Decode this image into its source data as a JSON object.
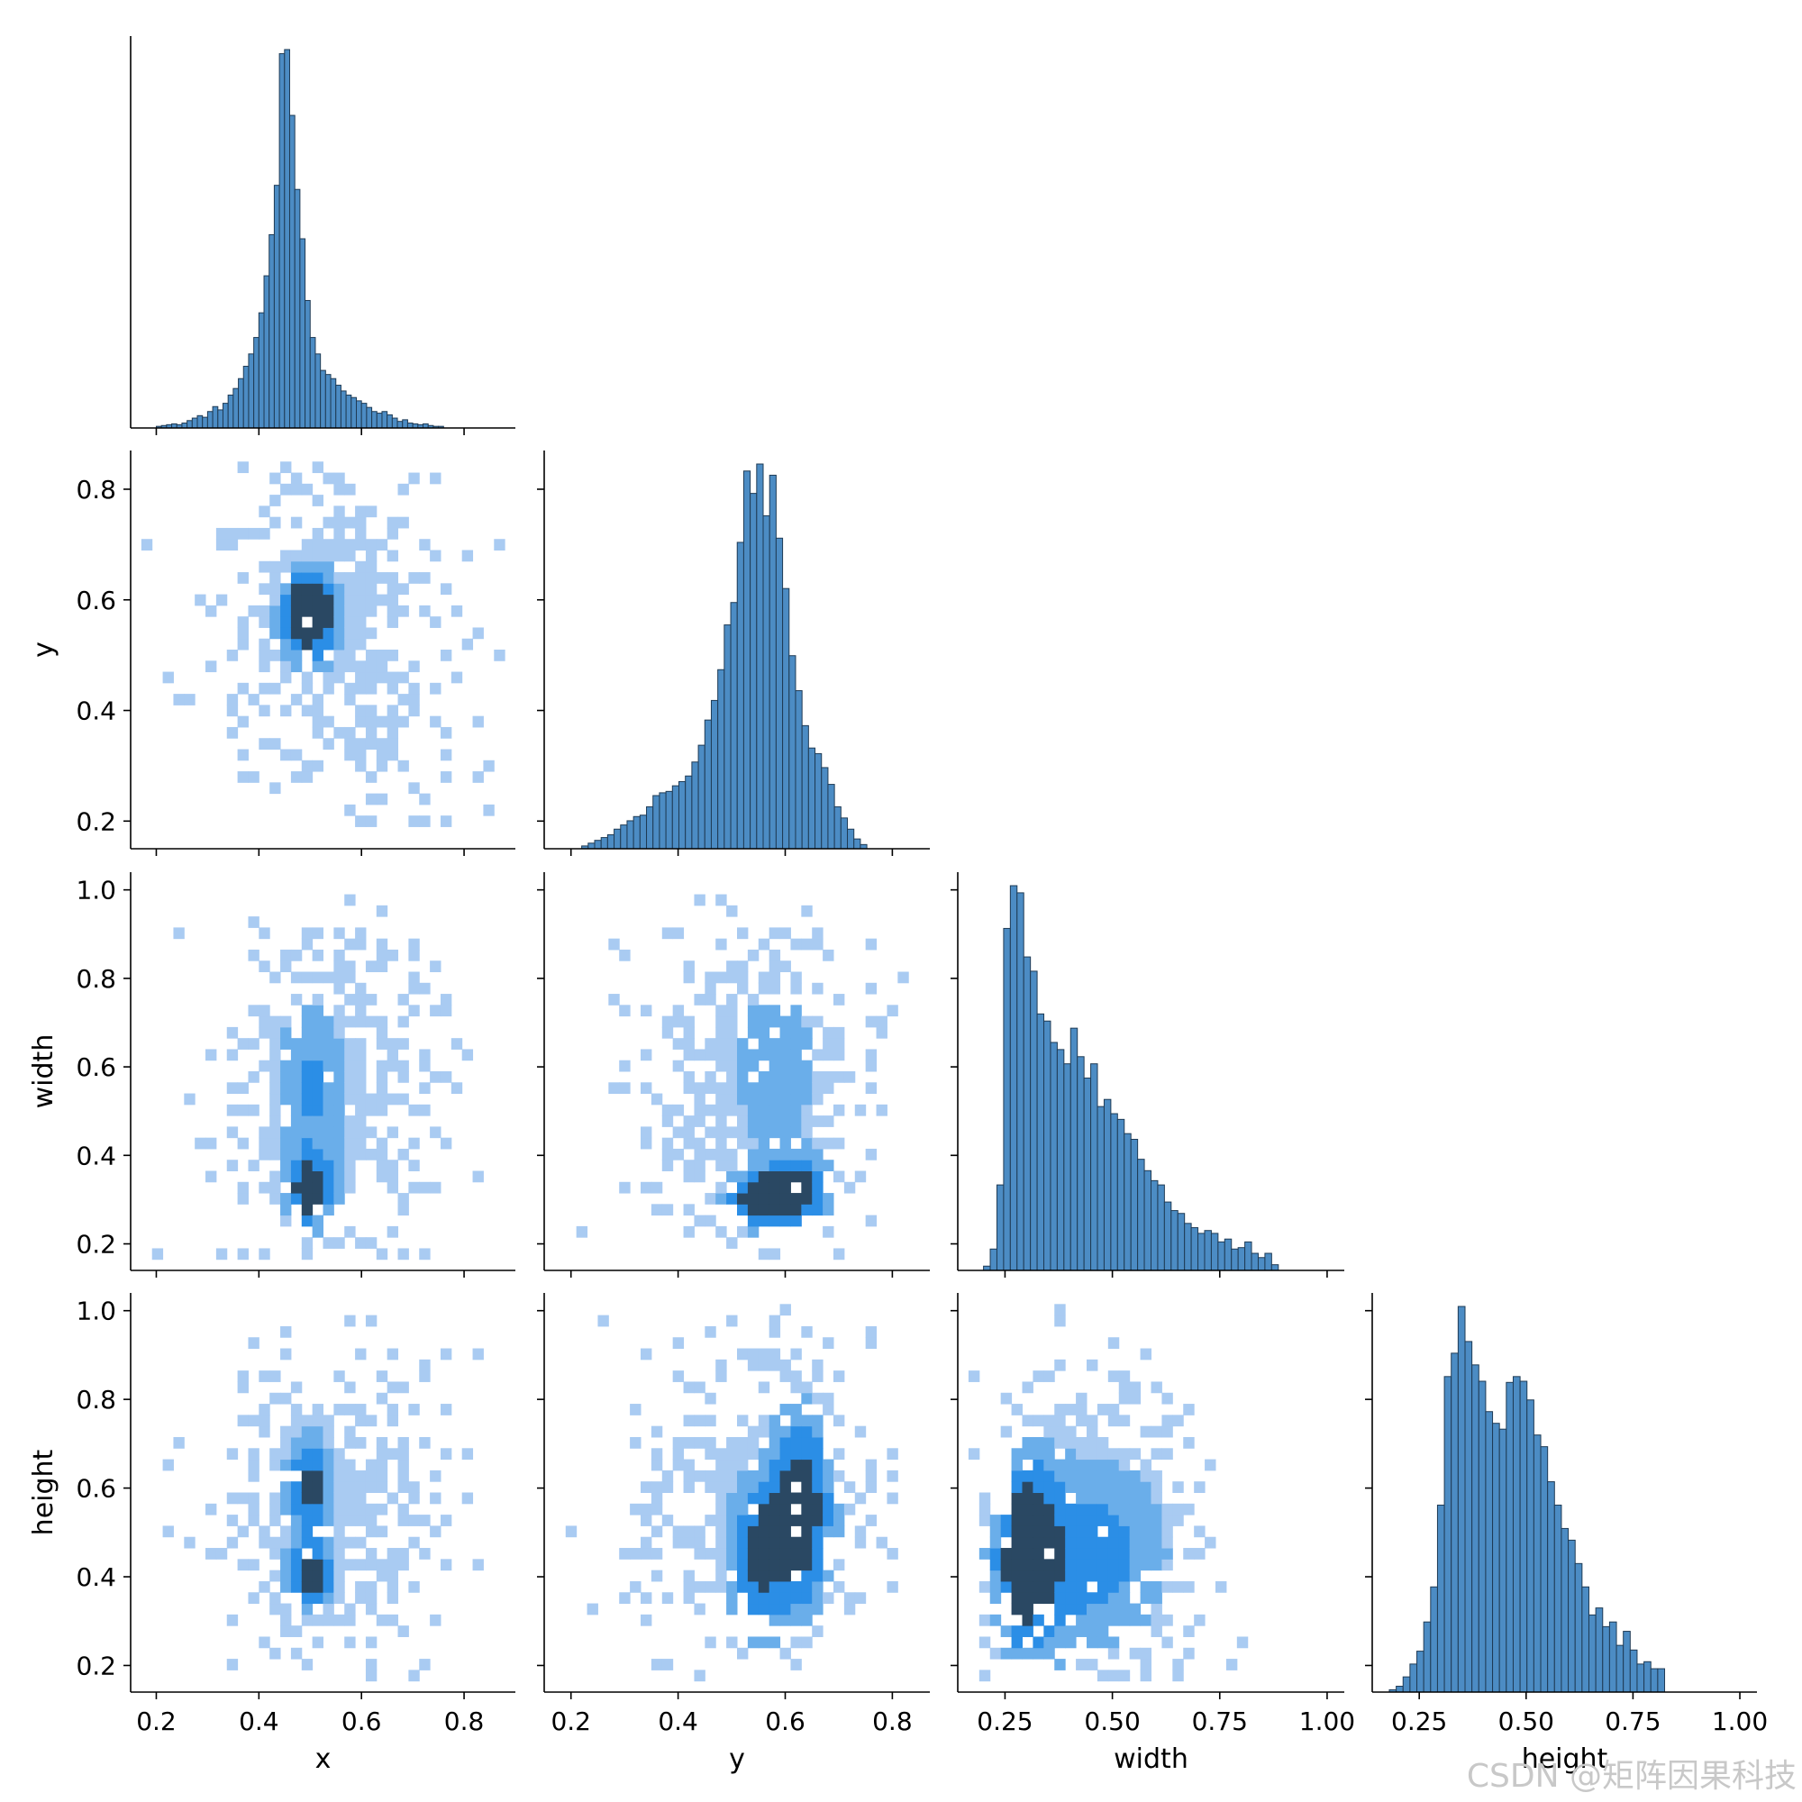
{
  "chart_data": {
    "type": "pairplot",
    "variables": [
      "x",
      "y",
      "width",
      "height"
    ],
    "diag_kind": "histogram",
    "offdiag_kind": "2d-histogram",
    "corner": true,
    "colors": {
      "bar": "#4c8cc4",
      "edge": "#1f3b55",
      "heat_low": "#a9cbf2",
      "heat_mid": "#2b8ee6",
      "heat_high": "#2a4863"
    },
    "axes": {
      "x": {
        "label": "x",
        "ticks": [
          "0.2",
          "0.4",
          "0.6",
          "0.8"
        ],
        "range": [
          0.15,
          0.9
        ]
      },
      "y": {
        "label": "y",
        "ticks": [
          "0.2",
          "0.4",
          "0.6",
          "0.8"
        ],
        "range": [
          0.15,
          0.87
        ]
      },
      "width": {
        "label": "width",
        "ticks": [
          "0.25",
          "0.50",
          "0.75",
          "1.00"
        ],
        "range": [
          0.14,
          1.04
        ],
        "yticks": [
          "0.2",
          "0.4",
          "0.6",
          "0.8",
          "1.0"
        ]
      },
      "height": {
        "label": "height",
        "ticks": [
          "0.25",
          "0.50",
          "0.75",
          "1.00"
        ],
        "range": [
          0.14,
          1.04
        ],
        "yticks": [
          "0.2",
          "0.4",
          "0.6",
          "0.8",
          "1.0"
        ]
      }
    },
    "diagonal": [
      {
        "variable": "x",
        "bin_start": 0.2,
        "bin_width": 0.01,
        "counts": [
          2,
          3,
          4,
          5,
          4,
          6,
          9,
          12,
          15,
          13,
          20,
          26,
          22,
          30,
          40,
          48,
          60,
          75,
          90,
          110,
          140,
          185,
          235,
          295,
          455,
          460,
          380,
          290,
          230,
          155,
          110,
          90,
          70,
          65,
          60,
          52,
          45,
          40,
          37,
          33,
          30,
          25,
          20,
          18,
          20,
          16,
          12,
          8,
          10,
          6,
          5,
          4,
          5,
          3,
          2,
          2
        ]
      },
      {
        "variable": "y",
        "bin_start": 0.22,
        "bin_width": 0.0121,
        "counts": [
          2,
          4,
          6,
          8,
          10,
          14,
          17,
          20,
          23,
          24,
          30,
          38,
          40,
          41,
          45,
          48,
          52,
          62,
          74,
          92,
          106,
          128,
          160,
          176,
          219,
          270,
          254,
          275,
          238,
          267,
          222,
          186,
          138,
          113,
          88,
          72,
          68,
          58,
          46,
          30,
          22,
          14,
          7,
          3
        ]
      },
      {
        "variable": "width",
        "bin_start": 0.2,
        "bin_width": 0.0156,
        "counts": [
          3,
          15,
          60,
          240,
          270,
          265,
          220,
          210,
          180,
          175,
          160,
          155,
          145,
          170,
          150,
          135,
          145,
          115,
          120,
          110,
          106,
          96,
          92,
          78,
          70,
          63,
          60,
          48,
          42,
          40,
          33,
          30,
          26,
          28,
          26,
          20,
          22,
          15,
          16,
          20,
          12,
          9,
          12,
          4
        ]
      },
      {
        "variable": "height",
        "bin_start": 0.18,
        "bin_width": 0.0161,
        "counts": [
          2,
          5,
          13,
          24,
          35,
          60,
          90,
          160,
          270,
          290,
          330,
          300,
          280,
          266,
          240,
          230,
          225,
          265,
          270,
          266,
          250,
          220,
          210,
          180,
          160,
          140,
          130,
          110,
          90,
          66,
          72,
          56,
          60,
          40,
          52,
          36,
          24,
          26,
          20,
          20
        ]
      }
    ],
    "density_2d": [
      {
        "x": "x",
        "y": "y",
        "regions": [
          {
            "cx": 0.5,
            "cy": 0.6,
            "sx": 0.03,
            "sy": 0.04,
            "weight": 1.0
          },
          {
            "cx": 0.5,
            "cy": 0.55,
            "sx": 0.04,
            "sy": 0.05,
            "weight": 0.8
          }
        ]
      },
      {
        "x": "x",
        "y": "width",
        "regions": [
          {
            "cx": 0.5,
            "cy": 0.32,
            "sx": 0.03,
            "sy": 0.05,
            "weight": 1.0
          },
          {
            "cx": 0.5,
            "cy": 0.55,
            "sx": 0.05,
            "sy": 0.15,
            "weight": 0.5
          }
        ]
      },
      {
        "x": "y",
        "y": "width",
        "regions": [
          {
            "cx": 0.55,
            "cy": 0.3,
            "sx": 0.04,
            "sy": 0.04,
            "weight": 1.0
          },
          {
            "cx": 0.62,
            "cy": 0.32,
            "sx": 0.04,
            "sy": 0.05,
            "weight": 1.0
          },
          {
            "cx": 0.58,
            "cy": 0.6,
            "sx": 0.06,
            "sy": 0.15,
            "weight": 0.4
          }
        ]
      },
      {
        "x": "x",
        "y": "height",
        "regions": [
          {
            "cx": 0.5,
            "cy": 0.6,
            "sx": 0.03,
            "sy": 0.08,
            "weight": 0.9
          },
          {
            "cx": 0.5,
            "cy": 0.4,
            "sx": 0.03,
            "sy": 0.05,
            "weight": 1.0
          }
        ]
      },
      {
        "x": "y",
        "y": "height",
        "regions": [
          {
            "cx": 0.63,
            "cy": 0.55,
            "sx": 0.04,
            "sy": 0.15,
            "weight": 1.0
          },
          {
            "cx": 0.55,
            "cy": 0.45,
            "sx": 0.04,
            "sy": 0.12,
            "weight": 0.8
          }
        ]
      },
      {
        "x": "width",
        "y": "height",
        "regions": [
          {
            "cx": 0.3,
            "cy": 0.45,
            "sx": 0.05,
            "sy": 0.15,
            "weight": 1.0
          },
          {
            "cx": 0.45,
            "cy": 0.45,
            "sx": 0.12,
            "sy": 0.15,
            "weight": 0.6
          }
        ]
      }
    ]
  },
  "watermark": "CSDN @矩阵因果科技"
}
